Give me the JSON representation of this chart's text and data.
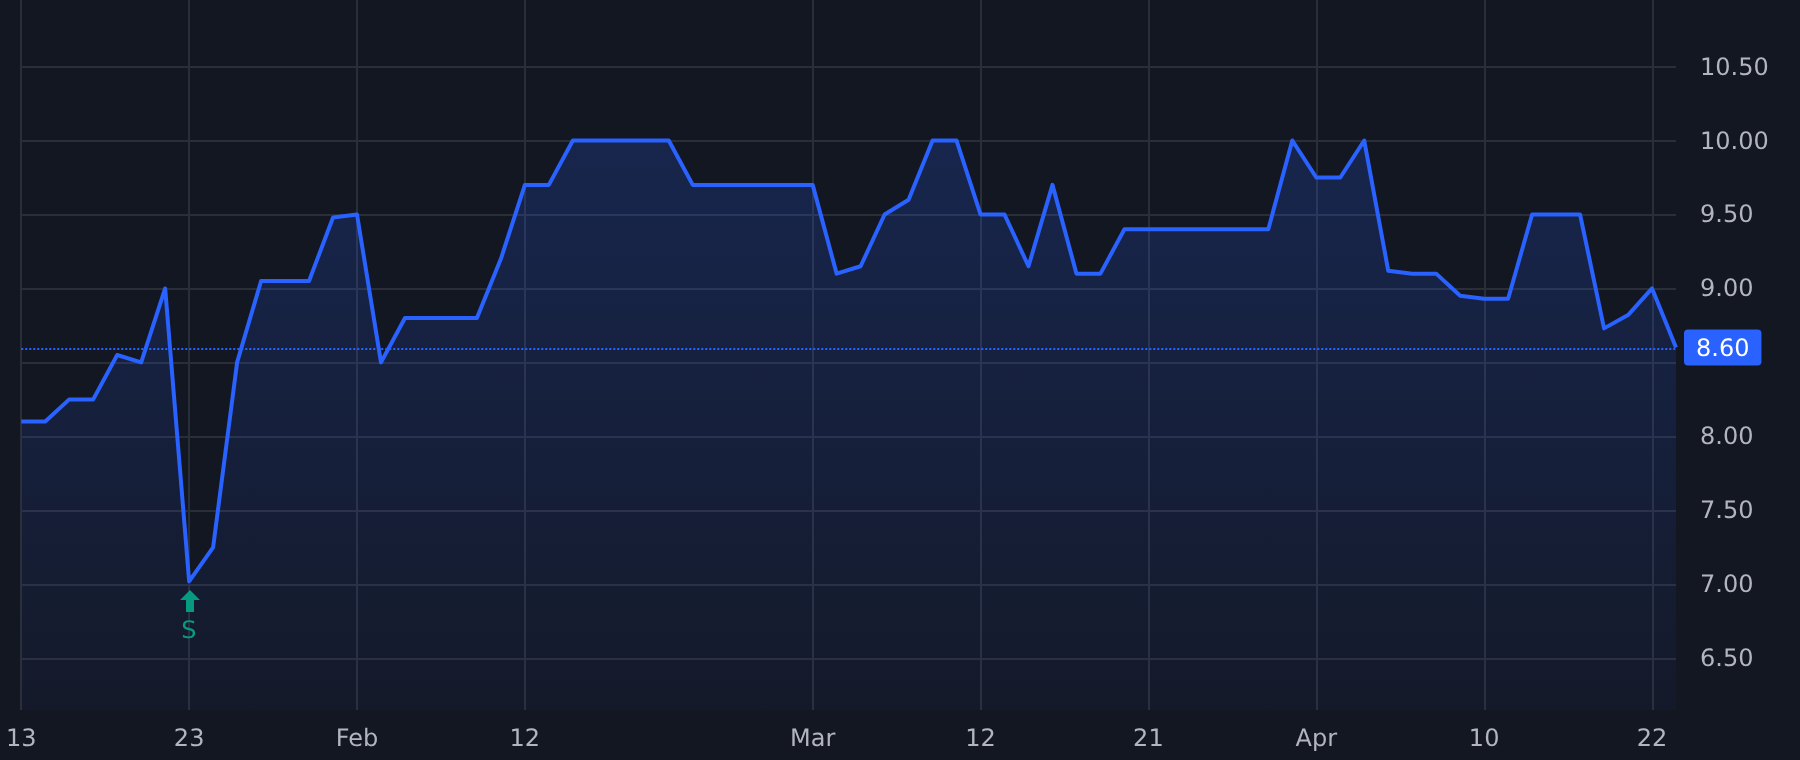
{
  "chart_data": {
    "type": "area",
    "categories": [
      "13",
      null,
      null,
      null,
      null,
      null,
      null,
      "23",
      null,
      null,
      null,
      null,
      null,
      null,
      "Feb",
      null,
      null,
      null,
      null,
      null,
      null,
      "12",
      null,
      null,
      null,
      null,
      null,
      null,
      null,
      null,
      null,
      null,
      null,
      "Mar",
      null,
      null,
      null,
      null,
      null,
      null,
      "12",
      null,
      null,
      null,
      null,
      null,
      null,
      "21",
      null,
      null,
      null,
      null,
      null,
      null,
      "Apr",
      null,
      null,
      null,
      null,
      null,
      null,
      "10",
      null,
      null,
      null,
      null,
      null,
      null,
      "22",
      null
    ],
    "series": [
      {
        "color": "#2962ff",
        "values": [
          8.1,
          8.1,
          8.25,
          8.25,
          8.55,
          8.5,
          9.0,
          7.02,
          7.25,
          8.5,
          9.05,
          9.05,
          9.05,
          9.48,
          9.5,
          8.5,
          8.8,
          8.8,
          8.8,
          8.8,
          9.2,
          9.7,
          9.7,
          10.0,
          10.0,
          10.0,
          10.0,
          10.0,
          9.7,
          9.7,
          9.7,
          9.7,
          9.7,
          9.7,
          9.1,
          9.15,
          9.5,
          9.6,
          10.0,
          10.0,
          9.5,
          9.5,
          9.15,
          9.7,
          9.1,
          9.1,
          9.4,
          9.4,
          9.4,
          9.4,
          9.4,
          9.4,
          9.4,
          10.0,
          9.75,
          9.75,
          10.0,
          9.12,
          9.1,
          9.1,
          8.95,
          8.93,
          8.93,
          9.5,
          9.5,
          9.5,
          8.73,
          8.82,
          9.0,
          8.6
        ]
      }
    ],
    "ylim": [
      6.15,
      10.95
    ],
    "yticks": [
      {
        "value": 6.5,
        "label": "6.50"
      },
      {
        "value": 7,
        "label": "7.00"
      },
      {
        "value": 7.5,
        "label": "7.50"
      },
      {
        "value": 8,
        "label": "8.00"
      },
      {
        "value": 8.5,
        "label": null
      },
      {
        "value": 9,
        "label": "9.00"
      },
      {
        "value": 9.5,
        "label": "9.50"
      },
      {
        "value": 10,
        "label": "10.00"
      },
      {
        "value": 10.5,
        "label": "10.50"
      }
    ],
    "grid": true,
    "ref_lines": [
      {
        "axis": "y",
        "value": 8.6,
        "label": "8.60",
        "color": "#2962ff",
        "line_style": "dotted"
      }
    ],
    "annotations": [
      {
        "text": "S",
        "x": "23",
        "y": 7.02
      }
    ]
  }
}
